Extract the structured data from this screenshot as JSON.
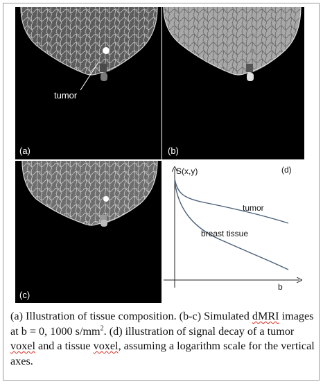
{
  "panels": {
    "a": {
      "label": "(a)",
      "annotation": "tumor"
    },
    "b": {
      "label": "(b)"
    },
    "c": {
      "label": "(c)"
    },
    "d": {
      "label": "(d)",
      "chart_data": {
        "type": "line",
        "ylabel": "S(x,y)",
        "xlabel": "b",
        "yscale": "log",
        "grid": false,
        "series": [
          {
            "name": "tumor"
          },
          {
            "name": "breast tissue"
          }
        ]
      }
    }
  },
  "caption": {
    "part1": "(a) Illustration of tissue composition. (b-c) Simulated ",
    "dmri": "dMRI",
    "part2": " images at b = 0, 1000 s/mm",
    "sup": "2",
    "part3": ". (d) illustration of signal decay of a tumor ",
    "voxel1": "voxel",
    "part4": " and a tissue ",
    "voxel2": "voxel",
    "part5": ", assuming a logarithm scale for the vertical axes."
  }
}
